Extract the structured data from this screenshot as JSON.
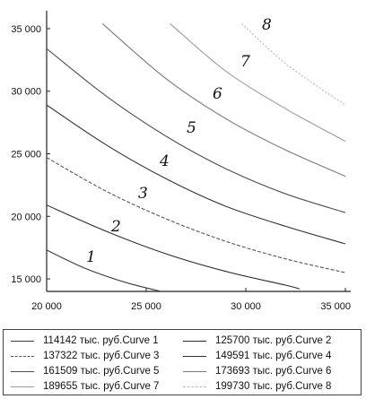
{
  "chart_data": {
    "type": "line",
    "title": "",
    "xlabel": "",
    "ylabel": "",
    "xlim": [
      20000,
      35000
    ],
    "ylim": [
      14000,
      36000
    ],
    "xticks": [
      20000,
      25000,
      30000,
      35000
    ],
    "yticks": [
      15000,
      20000,
      25000,
      30000,
      35000
    ],
    "x_tick_labels": [
      "20 000",
      "25 000",
      "30 000",
      "35 000"
    ],
    "y_tick_labels": [
      "15 000",
      "20 000",
      "25 000",
      "30 000",
      "35 000"
    ],
    "grid": false,
    "legend_position": "bottom",
    "series": [
      {
        "name": "114142 тыс. руб.Curve 1",
        "annotation": "1",
        "x": [
          20000,
          22000,
          24000,
          26000
        ],
        "y": [
          17300,
          15800,
          14700,
          13900
        ]
      },
      {
        "name": "125700 тыс. руб.Curve 2",
        "annotation": "2",
        "x": [
          20000,
          23000,
          26000,
          29000,
          32000,
          32700
        ],
        "y": [
          20900,
          18800,
          17000,
          15600,
          14500,
          14200
        ]
      },
      {
        "name": "137322 тыс. руб.Curve 3",
        "annotation": "3",
        "x": [
          20000,
          23000,
          26000,
          29000,
          32000,
          35000
        ],
        "y": [
          24700,
          22000,
          19800,
          18000,
          16600,
          15500
        ]
      },
      {
        "name": "149591 тыс. руб.Curve 4",
        "annotation": "4",
        "x": [
          20000,
          23000,
          26000,
          29000,
          32000,
          35000
        ],
        "y": [
          28900,
          25700,
          23000,
          20800,
          19200,
          17800
        ]
      },
      {
        "name": "161509 тыс. руб.Curve 5",
        "annotation": "5",
        "x": [
          20000,
          23000,
          26000,
          29000,
          32000,
          35000
        ],
        "y": [
          33400,
          29600,
          26400,
          23800,
          21800,
          20300
        ]
      },
      {
        "name": "173693 тыс. руб.Curve 6",
        "annotation": "6",
        "x": [
          22800,
          26000,
          29000,
          32000,
          35000
        ],
        "y": [
          35400,
          31000,
          27800,
          25300,
          23200
        ]
      },
      {
        "name": "189655 тыс. руб.Curve 7",
        "annotation": "7",
        "x": [
          26200,
          29000,
          32000,
          35000
        ],
        "y": [
          35400,
          31600,
          28600,
          26000
        ]
      },
      {
        "name": "199730 тыс. руб.Curve 8",
        "annotation": "8",
        "x": [
          29800,
          32000,
          35000
        ],
        "y": [
          35400,
          32200,
          28900
        ]
      }
    ]
  },
  "styles": {
    "series_colors": [
      "#3a3a3a",
      "#2a2a2a",
      "#555555",
      "#333333",
      "#505050",
      "#7a7a7a",
      "#9a9a9a",
      "#b8b8b8"
    ],
    "series_dash": [
      "",
      "",
      "4,2",
      "",
      "",
      "",
      "",
      "2,2"
    ]
  }
}
